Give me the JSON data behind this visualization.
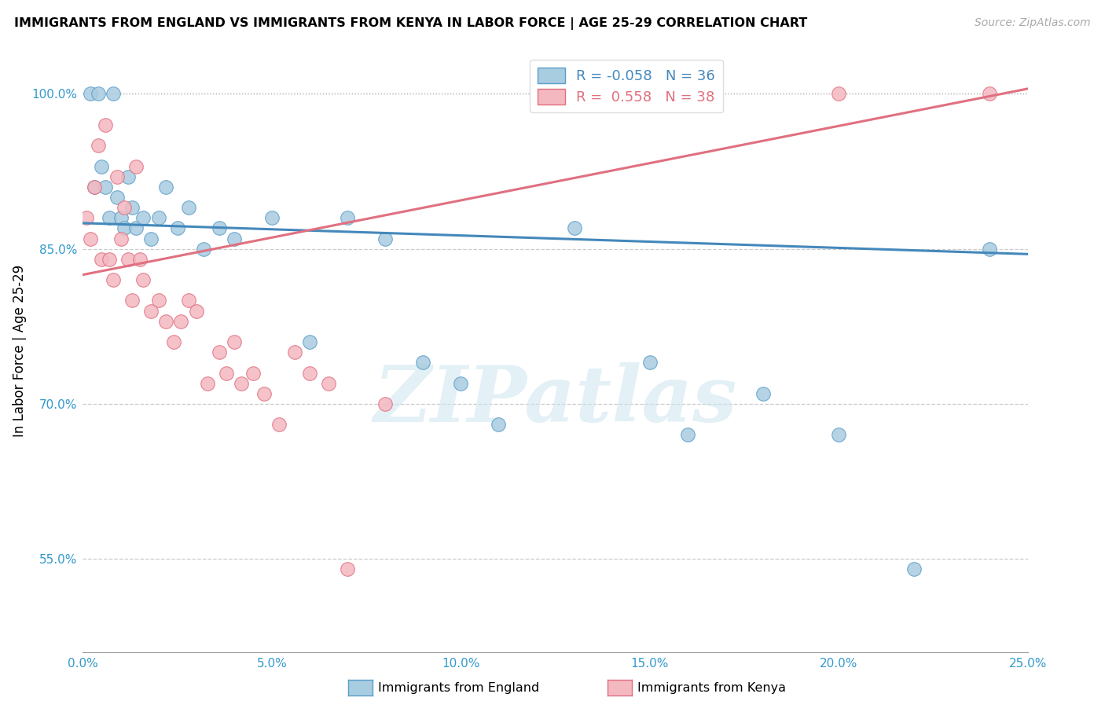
{
  "title": "IMMIGRANTS FROM ENGLAND VS IMMIGRANTS FROM KENYA IN LABOR FORCE | AGE 25-29 CORRELATION CHART",
  "source": "Source: ZipAtlas.com",
  "ylabel": "In Labor Force | Age 25-29",
  "xlim": [
    0.0,
    0.25
  ],
  "ylim": [
    0.46,
    1.04
  ],
  "xticks": [
    0.0,
    0.05,
    0.1,
    0.15,
    0.2,
    0.25
  ],
  "yticks": [
    0.55,
    0.7,
    0.85,
    1.0
  ],
  "ytick_labels": [
    "55.0%",
    "70.0%",
    "85.0%",
    "100.0%"
  ],
  "xtick_labels": [
    "0.0%",
    "5.0%",
    "10.0%",
    "15.0%",
    "20.0%",
    "25.0%"
  ],
  "legend_england": "Immigrants from England",
  "legend_kenya": "Immigrants from Kenya",
  "R_england": "-0.058",
  "N_england": "36",
  "R_kenya": "0.558",
  "N_kenya": "38",
  "color_england_fill": "#a8cce0",
  "color_england_edge": "#5b9ec9",
  "color_england_line": "#4488bb",
  "color_kenya_fill": "#f4b8c1",
  "color_kenya_edge": "#e07080",
  "color_kenya_line": "#e07080",
  "watermark_text": "ZIPatlas",
  "england_x": [
    0.002,
    0.003,
    0.004,
    0.005,
    0.006,
    0.007,
    0.008,
    0.009,
    0.01,
    0.011,
    0.012,
    0.013,
    0.014,
    0.016,
    0.018,
    0.02,
    0.022,
    0.025,
    0.028,
    0.032,
    0.036,
    0.04,
    0.05,
    0.06,
    0.07,
    0.08,
    0.09,
    0.1,
    0.11,
    0.13,
    0.15,
    0.16,
    0.18,
    0.2,
    0.22,
    0.24
  ],
  "england_y": [
    1.0,
    0.91,
    1.0,
    0.93,
    0.91,
    0.88,
    1.0,
    0.9,
    0.88,
    0.87,
    0.92,
    0.89,
    0.87,
    0.88,
    0.86,
    0.88,
    0.91,
    0.87,
    0.89,
    0.85,
    0.87,
    0.86,
    0.88,
    0.76,
    0.88,
    0.86,
    0.74,
    0.72,
    0.68,
    0.87,
    0.74,
    0.67,
    0.71,
    0.67,
    0.54,
    0.85
  ],
  "kenya_x": [
    0.001,
    0.002,
    0.003,
    0.004,
    0.005,
    0.006,
    0.007,
    0.008,
    0.009,
    0.01,
    0.011,
    0.012,
    0.013,
    0.014,
    0.015,
    0.016,
    0.018,
    0.02,
    0.022,
    0.024,
    0.026,
    0.028,
    0.03,
    0.033,
    0.036,
    0.038,
    0.04,
    0.042,
    0.045,
    0.048,
    0.052,
    0.056,
    0.06,
    0.065,
    0.07,
    0.08,
    0.2,
    0.24
  ],
  "kenya_y": [
    0.88,
    0.86,
    0.91,
    0.95,
    0.84,
    0.97,
    0.84,
    0.82,
    0.92,
    0.86,
    0.89,
    0.84,
    0.8,
    0.93,
    0.84,
    0.82,
    0.79,
    0.8,
    0.78,
    0.76,
    0.78,
    0.8,
    0.79,
    0.72,
    0.75,
    0.73,
    0.76,
    0.72,
    0.73,
    0.71,
    0.68,
    0.75,
    0.73,
    0.72,
    0.54,
    0.7,
    1.0,
    1.0
  ],
  "eng_line_x": [
    0.0,
    0.25
  ],
  "eng_line_y": [
    0.875,
    0.845
  ],
  "ken_line_x": [
    0.0,
    0.25
  ],
  "ken_line_y": [
    0.825,
    1.005
  ]
}
